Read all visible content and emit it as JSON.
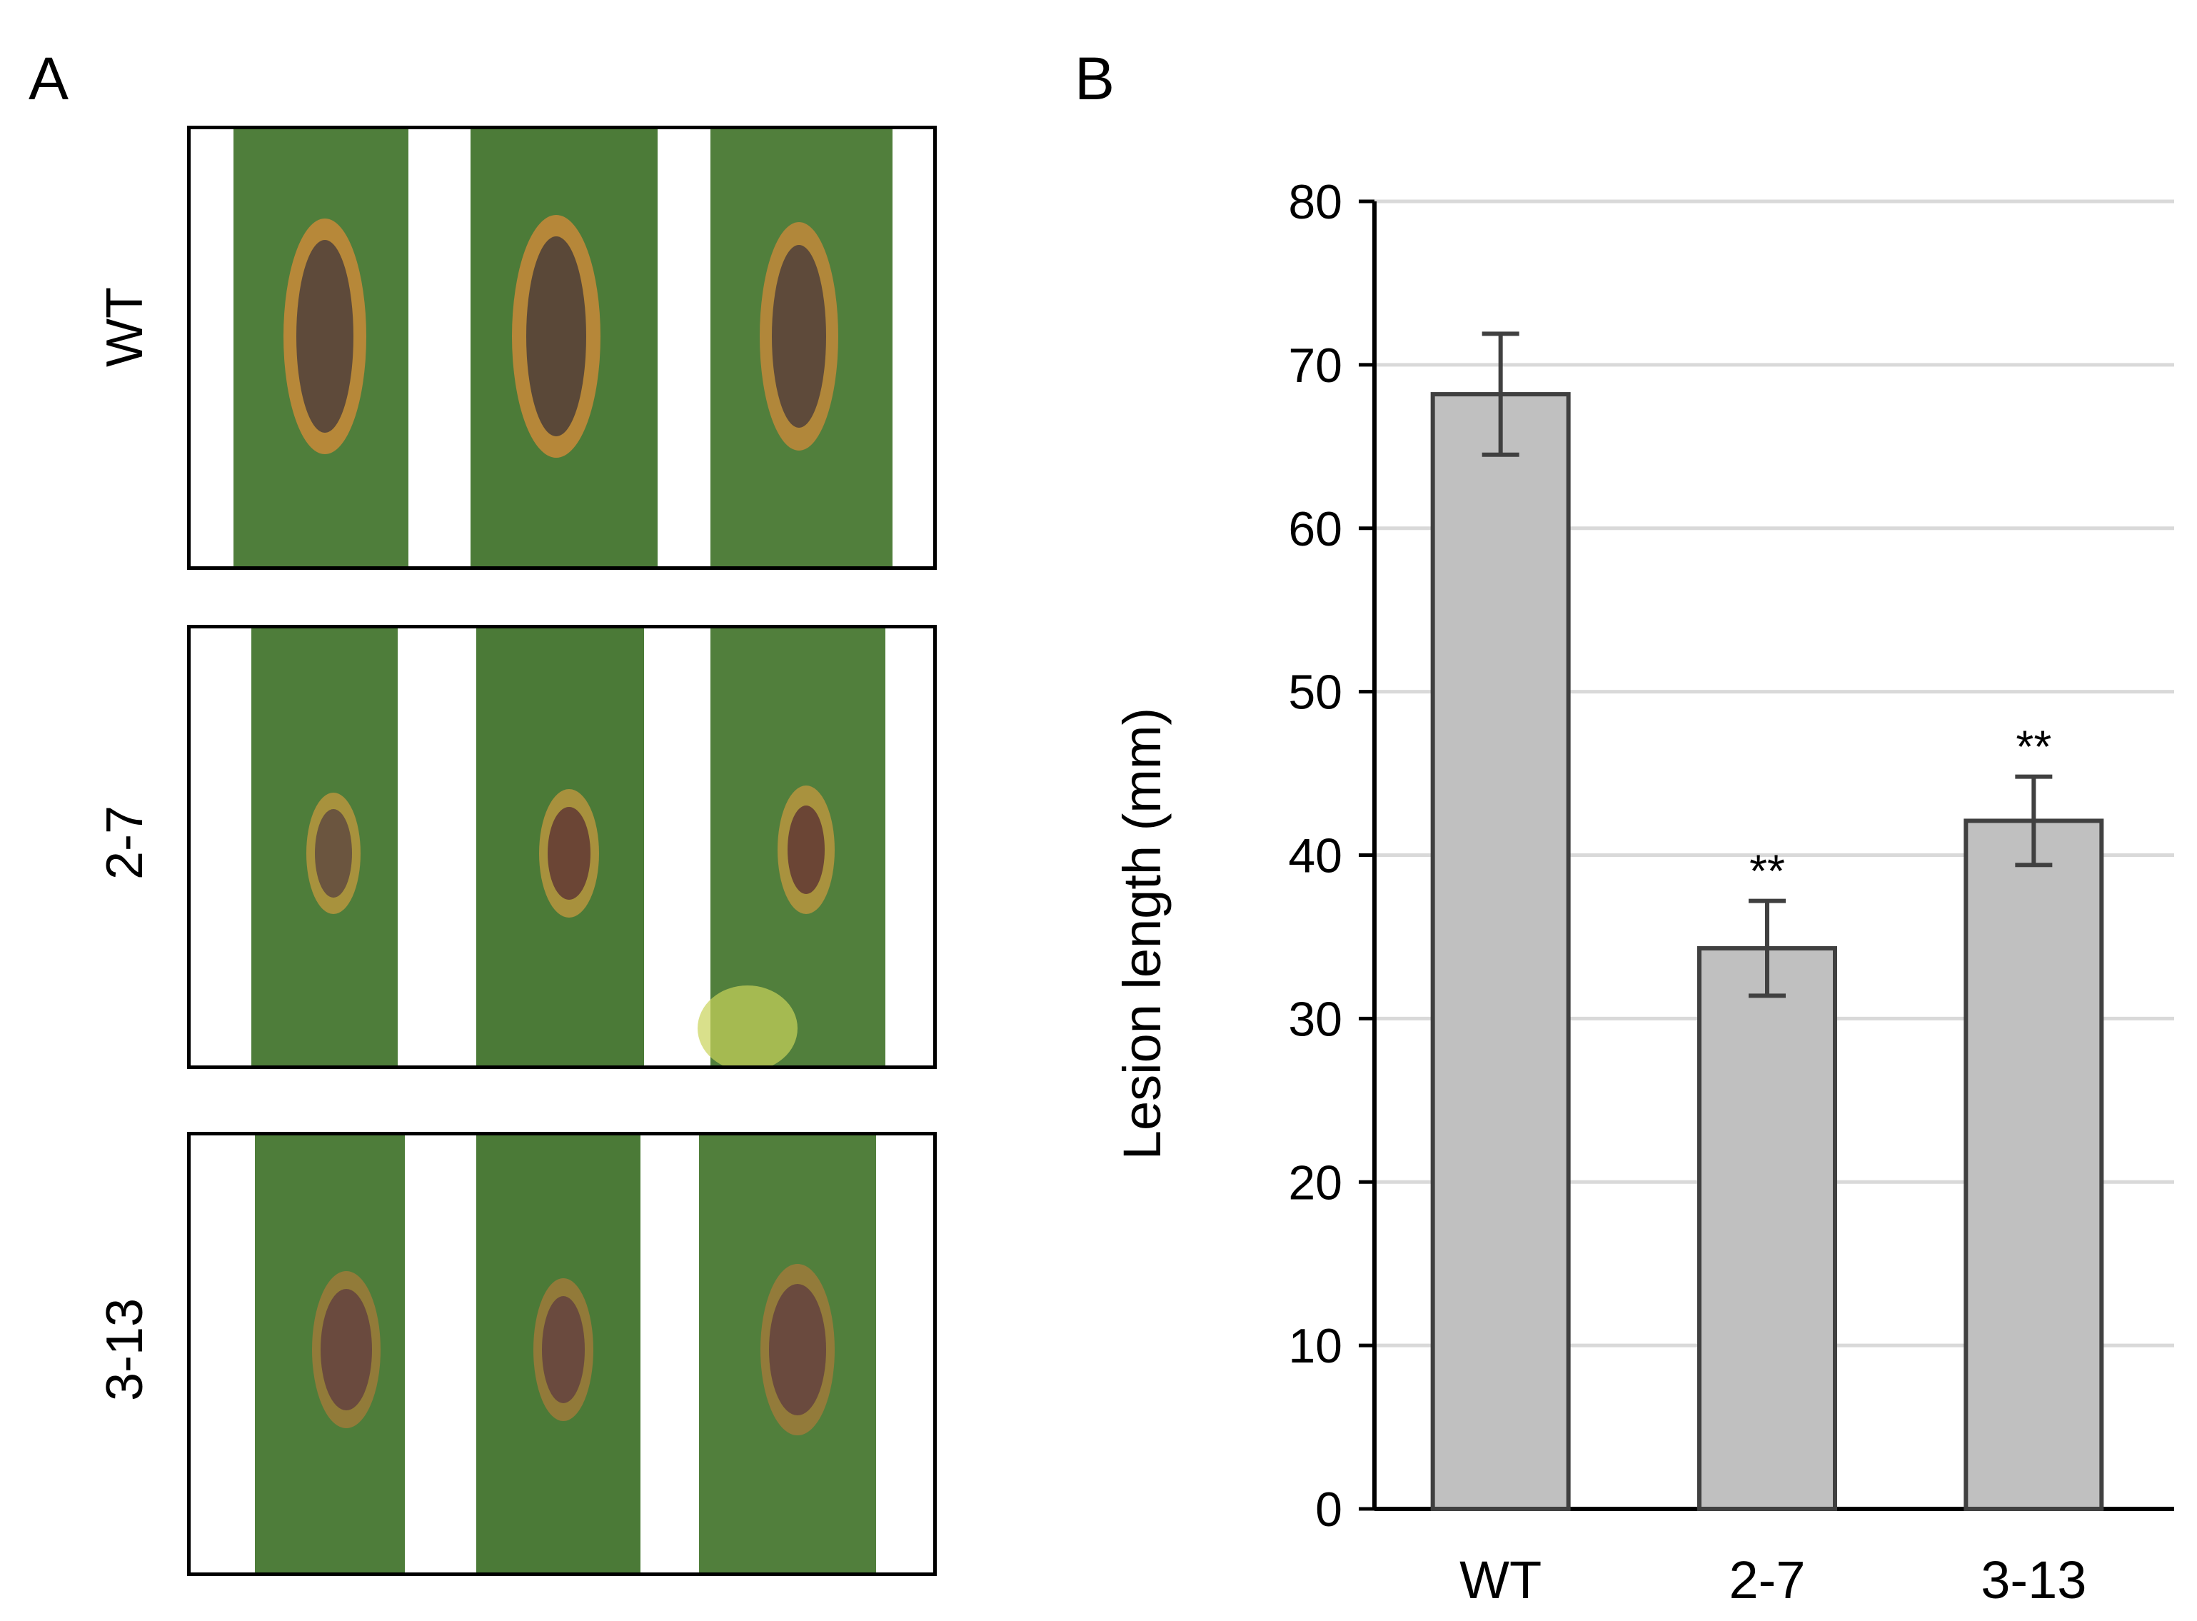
{
  "panels": {
    "a": "A",
    "b": "B"
  },
  "images": {
    "rows": [
      "WT",
      "2-7",
      "3-13"
    ],
    "leaf_color": "#4e7d3a",
    "lesion_color": "#5e4a3a",
    "halo_color": "#c98a3a"
  },
  "chart_data": {
    "type": "bar",
    "categories": [
      "WT",
      "2-7",
      "3-13"
    ],
    "values": [
      68.2,
      34.3,
      42.1
    ],
    "errors": [
      3.7,
      2.9,
      2.7
    ],
    "annotations": [
      "",
      "**",
      "**"
    ],
    "ylabel": "Lesion length (mm)",
    "xlabel": "",
    "ylim": [
      0,
      80
    ],
    "yticks": [
      0,
      10,
      20,
      30,
      40,
      50,
      60,
      70,
      80
    ],
    "grid": true,
    "bar_color": "#c0c0c0",
    "bar_edge_color": "#404040"
  }
}
